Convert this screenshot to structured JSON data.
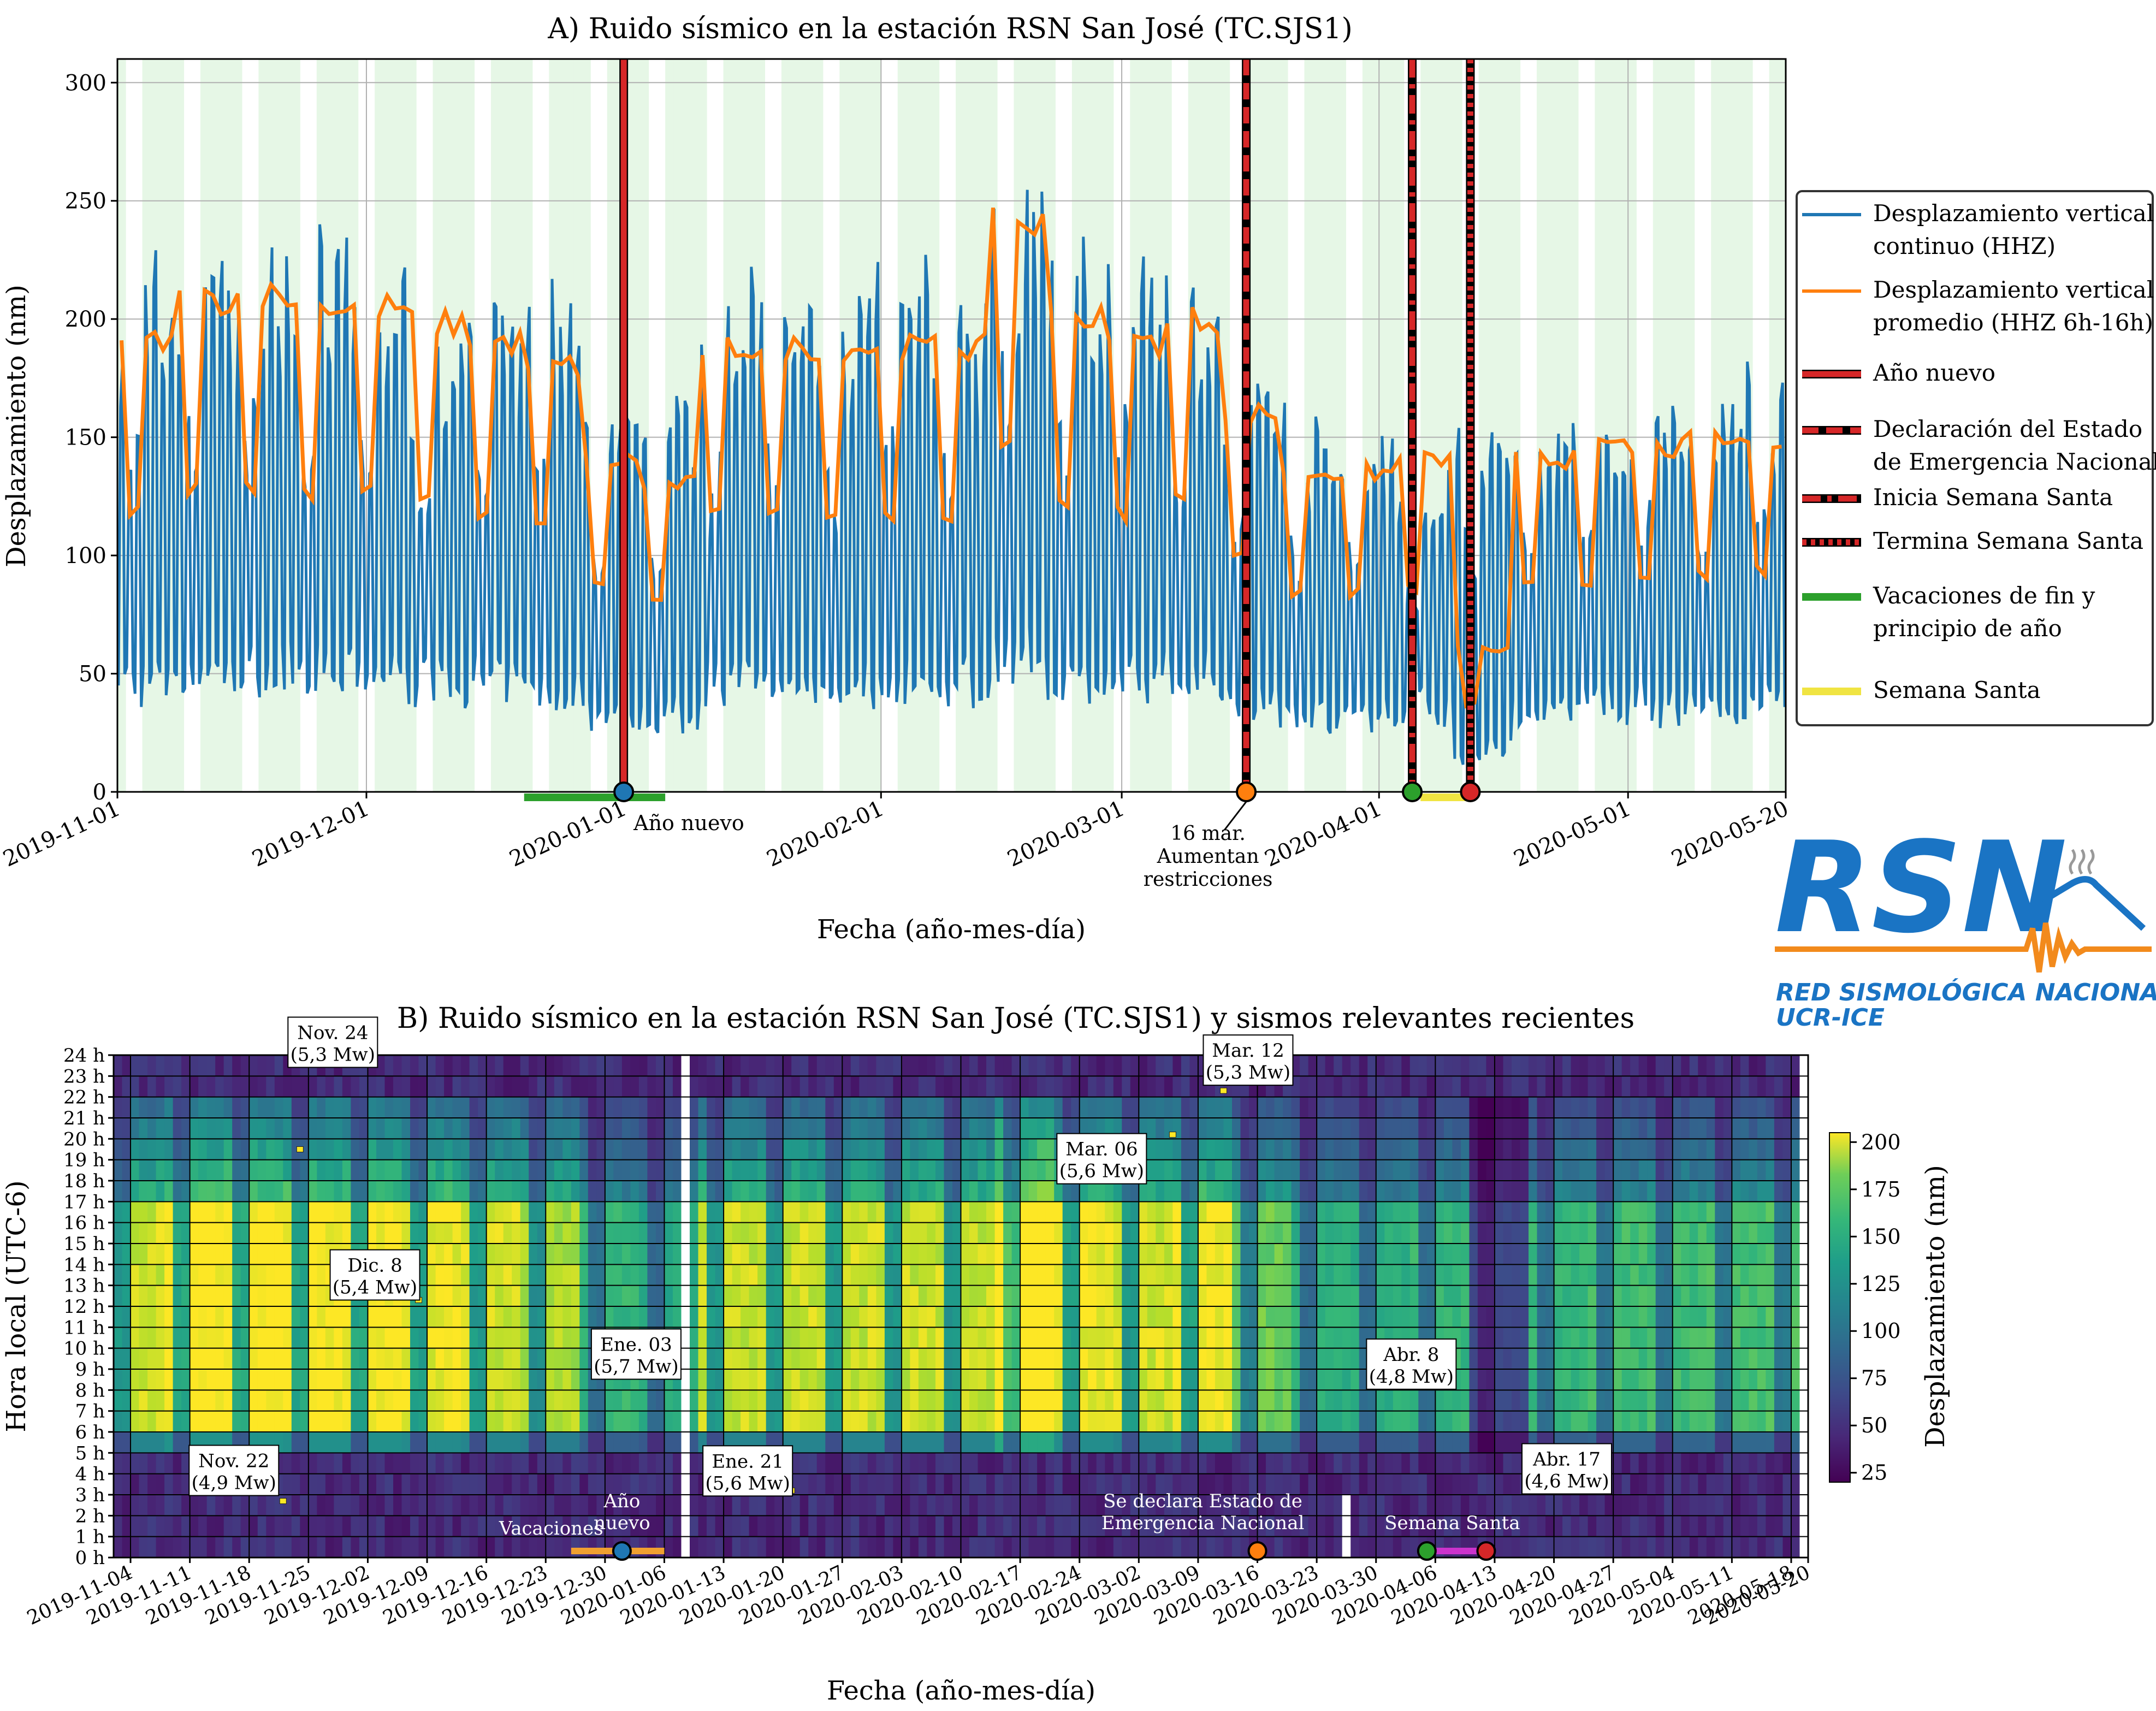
{
  "chart_data": [
    {
      "type": "line",
      "title": "A) Ruido sísmico en la estación RSN San José (TC.SJS1)",
      "xlabel": "Fecha (año-mes-día)",
      "ylabel": "Desplazamiento (nm)",
      "xlim": [
        "2019-11-01",
        "2020-05-20"
      ],
      "ylim": [
        0,
        310
      ],
      "xticks": [
        "2019-11-01",
        "2019-12-01",
        "2020-01-01",
        "2020-02-01",
        "2020-03-01",
        "2020-04-01",
        "2020-05-01",
        "2020-05-20"
      ],
      "yticks": [
        0,
        50,
        100,
        150,
        200,
        250,
        300
      ],
      "grid": true,
      "legend_position": "right",
      "background": "light green stripes on weekends",
      "series": [
        {
          "name": "Desplazamiento vertical continuo (HHZ)",
          "color": "#1f77b4",
          "description_values": "daily oscillation: day peaks / night minima",
          "day_peak_weekly": [
            {
              "week_start": "2019-11-01",
              "peak": 215
            },
            {
              "week_start": "2019-11-08",
              "peak": 225
            },
            {
              "week_start": "2019-11-15",
              "peak": 225
            },
            {
              "week_start": "2019-11-22",
              "peak": 225
            },
            {
              "week_start": "2019-11-29",
              "peak": 215
            },
            {
              "week_start": "2019-12-06",
              "peak": 200
            },
            {
              "week_start": "2019-12-13",
              "peak": 205
            },
            {
              "week_start": "2019-12-20",
              "peak": 205
            },
            {
              "week_start": "2019-12-27",
              "peak": 150
            },
            {
              "week_start": "2020-01-03",
              "peak": 165
            },
            {
              "week_start": "2020-01-10",
              "peak": 210
            },
            {
              "week_start": "2020-01-17",
              "peak": 205
            },
            {
              "week_start": "2020-01-24",
              "peak": 205
            },
            {
              "week_start": "2020-01-31",
              "peak": 210
            },
            {
              "week_start": "2020-02-07",
              "peak": 210
            },
            {
              "week_start": "2020-02-14",
              "peak": 245
            },
            {
              "week_start": "2020-02-21",
              "peak": 225
            },
            {
              "week_start": "2020-02-28",
              "peak": 220
            },
            {
              "week_start": "2020-03-06",
              "peak": 220
            },
            {
              "week_start": "2020-03-13",
              "peak": 175
            },
            {
              "week_start": "2020-03-20",
              "peak": 155
            },
            {
              "week_start": "2020-03-27",
              "peak": 150
            },
            {
              "week_start": "2020-04-03",
              "peak": 130
            },
            {
              "week_start": "2020-04-10",
              "peak": 150
            },
            {
              "week_start": "2020-04-17",
              "peak": 160
            },
            {
              "week_start": "2020-04-24",
              "peak": 160
            },
            {
              "week_start": "2020-05-01",
              "peak": 165
            },
            {
              "week_start": "2020-05-08",
              "peak": 165
            },
            {
              "week_start": "2020-05-15",
              "peak": 170
            }
          ]
        },
        {
          "name": "Desplazamiento vertical promedio (HHZ 6h-16h)",
          "color": "#ff7f0e",
          "weekday_mean_by_week": [
            {
              "week_start": "2019-11-01",
              "value": 190
            },
            {
              "week_start": "2019-11-08",
              "value": 208
            },
            {
              "week_start": "2019-11-15",
              "value": 210
            },
            {
              "week_start": "2019-11-22",
              "value": 205
            },
            {
              "week_start": "2019-11-29",
              "value": 205
            },
            {
              "week_start": "2019-12-06",
              "value": 198
            },
            {
              "week_start": "2019-12-13",
              "value": 190
            },
            {
              "week_start": "2019-12-20",
              "value": 180
            },
            {
              "week_start": "2019-12-27",
              "value": 140
            },
            {
              "week_start": "2020-01-03",
              "value": 130
            },
            {
              "week_start": "2020-01-10",
              "value": 188
            },
            {
              "week_start": "2020-01-17",
              "value": 188
            },
            {
              "week_start": "2020-01-24",
              "value": 188
            },
            {
              "week_start": "2020-01-31",
              "value": 188
            },
            {
              "week_start": "2020-02-07",
              "value": 188
            },
            {
              "week_start": "2020-02-14",
              "value": 240
            },
            {
              "week_start": "2020-02-21",
              "value": 200
            },
            {
              "week_start": "2020-02-28",
              "value": 190
            },
            {
              "week_start": "2020-03-06",
              "value": 200
            },
            {
              "week_start": "2020-03-13",
              "value": 160
            },
            {
              "week_start": "2020-03-20",
              "value": 135
            },
            {
              "week_start": "2020-03-27",
              "value": 135
            },
            {
              "week_start": "2020-04-03",
              "value": 140
            },
            {
              "week_start": "2020-04-10",
              "value": 60
            },
            {
              "week_start": "2020-04-17",
              "value": 140
            },
            {
              "week_start": "2020-04-24",
              "value": 145
            },
            {
              "week_start": "2020-05-01",
              "value": 145
            },
            {
              "week_start": "2020-05-08",
              "value": 148
            },
            {
              "week_start": "2020-05-15",
              "value": 150
            }
          ]
        }
      ],
      "event_lines": [
        {
          "name": "Año nuevo",
          "date": "2020-01-01",
          "style": "solid",
          "color": "#d62728"
        },
        {
          "name": "Declaración del Estado de Emergencia Nacional",
          "date": "2020-03-16",
          "style": "dashed",
          "color": "#d62728"
        },
        {
          "name": "Inicia Semana Santa",
          "date": "2020-04-05",
          "style": "dashdot",
          "color": "#d62728"
        },
        {
          "name": "Termina Semana Santa",
          "date": "2020-04-12",
          "style": "dotted",
          "color": "#d62728"
        }
      ],
      "bars": [
        {
          "name": "Vacaciones de fin y principio de año",
          "from": "2019-12-20",
          "to": "2020-01-06",
          "color": "#2ca02c"
        },
        {
          "name": "Semana Santa",
          "from": "2020-04-06",
          "to": "2020-04-12",
          "color": "#f0e442"
        }
      ],
      "markers": [
        {
          "date": "2020-01-01",
          "color": "#1f77b4"
        },
        {
          "date": "2020-03-16",
          "color": "#ff7f0e"
        },
        {
          "date": "2020-04-05",
          "color": "#2ca02c"
        },
        {
          "date": "2020-04-12",
          "color": "#d62728"
        }
      ],
      "annotations": [
        {
          "text": "Año nuevo",
          "date": "2020-01-01"
        },
        {
          "text": "16 mar. Aumentan restricciones",
          "date": "2020-03-16"
        }
      ]
    },
    {
      "type": "heatmap",
      "title": "B) Ruido sísmico en la estación RSN San José (TC.SJS1) y sismos relevantes recientes",
      "xlabel": "Fecha (año-mes-día)",
      "ylabel": "Hora local (UTC-6)",
      "colorbar_label": "Desplazamiento (nm)",
      "colorbar_ticks": [
        25,
        50,
        75,
        100,
        125,
        150,
        175,
        200
      ],
      "colormap": "viridis",
      "clim": [
        20,
        205
      ],
      "xticks": [
        "2019-11-04",
        "2019-11-11",
        "2019-11-18",
        "2019-11-25",
        "2019-12-02",
        "2019-12-09",
        "2019-12-16",
        "2019-12-23",
        "2019-12-30",
        "2020-01-06",
        "2020-01-13",
        "2020-01-20",
        "2020-01-27",
        "2020-02-03",
        "2020-02-10",
        "2020-02-17",
        "2020-02-24",
        "2020-03-02",
        "2020-03-09",
        "2020-03-16",
        "2020-03-23",
        "2020-03-30",
        "2020-04-06",
        "2020-04-13",
        "2020-04-20",
        "2020-04-27",
        "2020-05-04",
        "2020-05-11",
        "2020-05-18",
        "2020-05-20"
      ],
      "yticks": [
        "0 h",
        "1 h",
        "2 h",
        "3 h",
        "4 h",
        "5 h",
        "6 h",
        "7 h",
        "8 h",
        "9 h",
        "10 h",
        "11 h",
        "12 h",
        "13 h",
        "14 h",
        "15 h",
        "16 h",
        "17 h",
        "18 h",
        "19 h",
        "20 h",
        "21 h",
        "22 h",
        "23 h",
        "24 h"
      ],
      "earthquakes": [
        {
          "label": "Nov. 24",
          "magnitude": "(5,3 Mw)",
          "date": "2019-11-24",
          "hour": 19.5
        },
        {
          "label": "Nov. 22",
          "magnitude": "(4,9 Mw)",
          "date": "2019-11-22",
          "hour": 2.7
        },
        {
          "label": "Dic. 8",
          "magnitude": "(5,4 Mw)",
          "date": "2019-12-08",
          "hour": 12.3
        },
        {
          "label": "Ene. 03",
          "magnitude": "(5,7 Mw)",
          "date": "2020-01-03",
          "hour": 9.3
        },
        {
          "label": "Ene. 21",
          "magnitude": "(5,6 Mw)",
          "date": "2020-01-21",
          "hour": 3.2
        },
        {
          "label": "Mar. 06",
          "magnitude": "(5,6 Mw)",
          "date": "2020-03-06",
          "hour": 20.2
        },
        {
          "label": "Mar. 12",
          "magnitude": "(5,3 Mw)",
          "date": "2020-03-12",
          "hour": 22.3
        },
        {
          "label": "Abr. 8",
          "magnitude": "(4,8 Mw)",
          "date": "2020-04-08",
          "hour": 8.3
        },
        {
          "label": "Abr. 17",
          "magnitude": "(4,6 Mw)",
          "date": "2020-04-17",
          "hour": 3.3
        }
      ],
      "event_labels": [
        {
          "text": "Vacaciones",
          "date": "2019-12-26"
        },
        {
          "text": "Año nuevo",
          "date": "2020-01-01"
        },
        {
          "text": "Se declara Estado de Emergencia Nacional",
          "date": "2020-03-16"
        },
        {
          "text": "Semana Santa",
          "date": "2020-04-08"
        }
      ],
      "bars": [
        {
          "name": "Vacaciones",
          "from": "2019-12-26",
          "to": "2020-01-06",
          "color": "#f0a030"
        },
        {
          "name": "Semana Santa",
          "from": "2020-04-05",
          "to": "2020-04-12",
          "color": "#cc33cc"
        }
      ],
      "markers": [
        {
          "date": "2020-01-01",
          "color": "#1f77b4"
        },
        {
          "date": "2020-03-16",
          "color": "#ff7f0e"
        },
        {
          "date": "2020-04-05",
          "color": "#2ca02c"
        },
        {
          "date": "2020-04-12",
          "color": "#d62728"
        }
      ],
      "data_gaps": [
        {
          "date": "2020-01-08",
          "from_hour": 0,
          "to_hour": 24
        },
        {
          "date": "2020-03-26",
          "from_hour": 0,
          "to_hour": 3
        },
        {
          "date": "2020-05-19",
          "from_hour": 0,
          "to_hour": 24
        }
      ]
    }
  ],
  "legend": {
    "items": [
      {
        "text_lines": [
          "Desplazamiento vertical",
          "continuo (HHZ)"
        ],
        "style": "line",
        "color": "#1f77b4"
      },
      {
        "text_lines": [
          "Desplazamiento vertical",
          "promedio (HHZ 6h-16h)"
        ],
        "style": "line",
        "color": "#ff7f0e"
      },
      {
        "text_lines": [
          "Año nuevo"
        ],
        "style": "solid",
        "color": "#d62728"
      },
      {
        "text_lines": [
          "Declaración del Estado",
          "de Emergencia Nacional"
        ],
        "style": "dashed",
        "color": "#d62728"
      },
      {
        "text_lines": [
          "Inicia Semana Santa"
        ],
        "style": "dashdot",
        "color": "#d62728"
      },
      {
        "text_lines": [
          "Termina Semana Santa"
        ],
        "style": "dotted",
        "color": "#d62728"
      },
      {
        "text_lines": [
          "Vacaciones de fin y",
          "principio de año"
        ],
        "style": "bar",
        "color": "#2ca02c"
      },
      {
        "text_lines": [
          "Semana Santa"
        ],
        "style": "bar",
        "color": "#f0e442"
      }
    ]
  },
  "logo": {
    "name": "RSN",
    "line1": "RED SISMOLÓGICA NACIONAL",
    "line2": "UCR-ICE",
    "colors": {
      "blue": "#1a74c4",
      "orange": "#f28a1c"
    }
  }
}
